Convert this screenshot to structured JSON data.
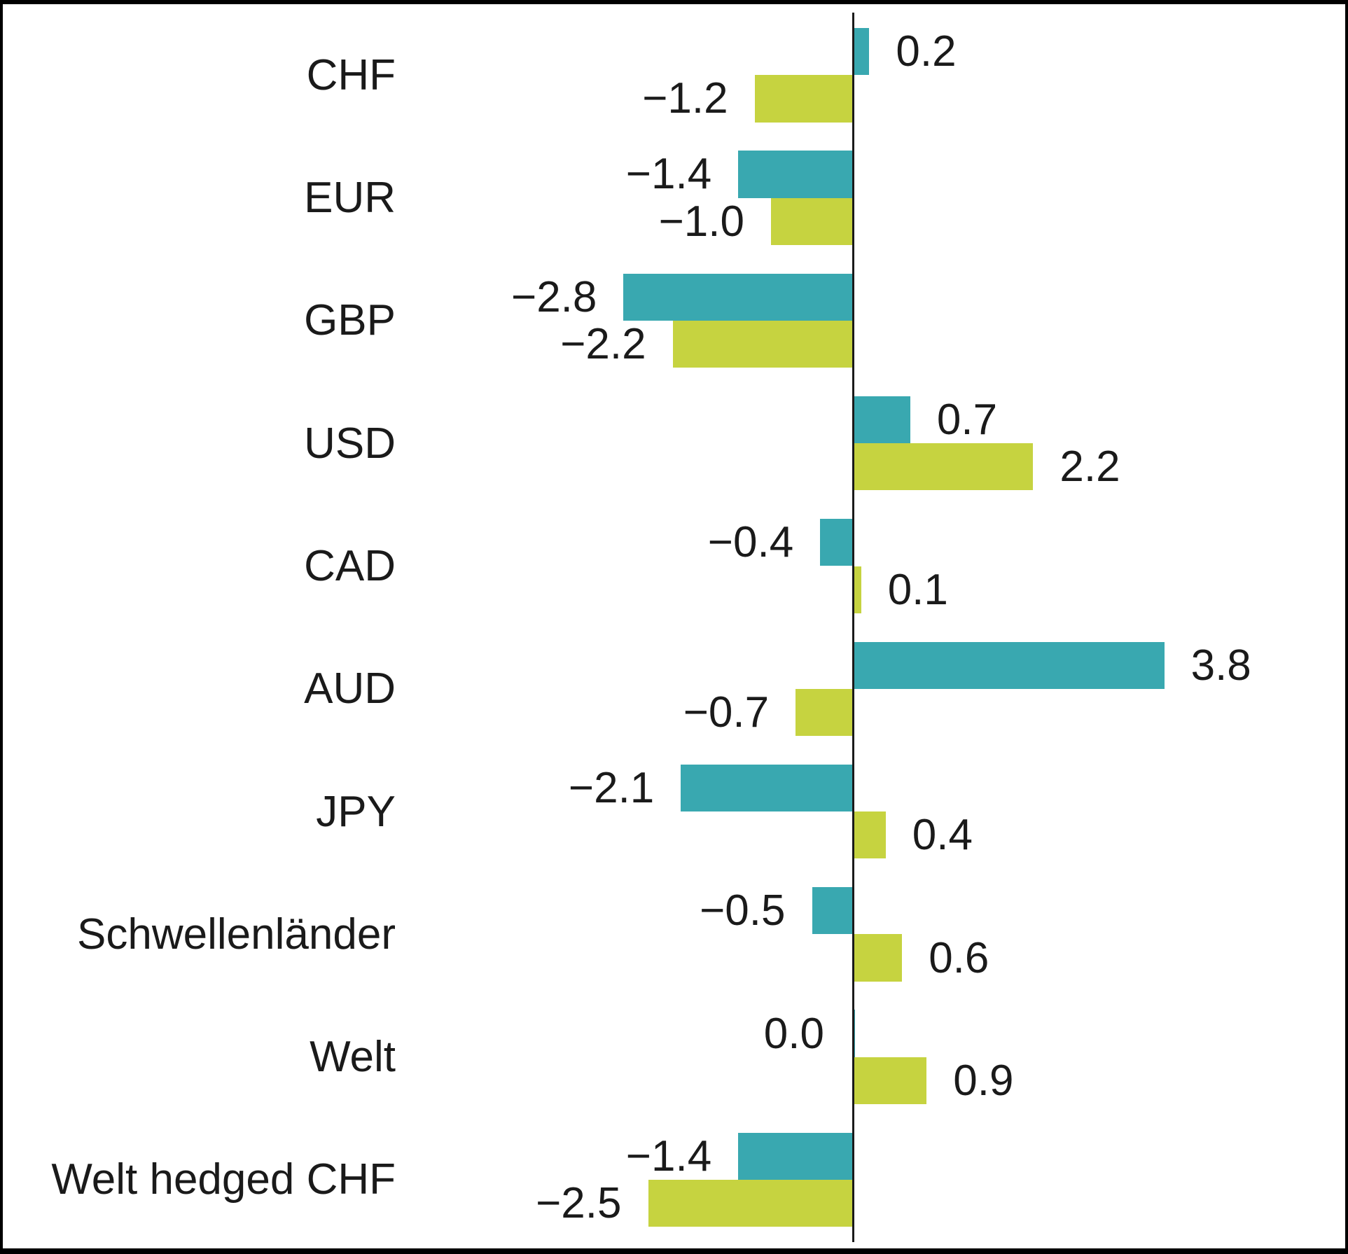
{
  "chart_data": {
    "type": "bar",
    "orientation": "horizontal",
    "title": "",
    "grid": false,
    "legend": false,
    "zero_axis_line": true,
    "categories": [
      "CHF",
      "EUR",
      "GBP",
      "USD",
      "CAD",
      "AUD",
      "JPY",
      "Schwellenländer",
      "Welt",
      "Welt hedged CHF"
    ],
    "series": [
      {
        "name": "teal-series",
        "color": "#39A8B0",
        "values": [
          0.2,
          -1.4,
          -2.8,
          0.7,
          -0.4,
          3.8,
          -2.1,
          -0.5,
          0.0,
          -1.4
        ]
      },
      {
        "name": "green-series",
        "color": "#C6D340",
        "values": [
          -1.2,
          -1.0,
          -2.2,
          2.2,
          0.1,
          -0.7,
          0.4,
          0.6,
          0.9,
          -2.5
        ]
      }
    ],
    "value_labels": [
      [
        "0.2",
        "−1.4",
        "−2.8",
        "0.7",
        "−0.4",
        "3.8",
        "−2.1",
        "−0.5",
        "0.0",
        "−1.4"
      ],
      [
        "−1.2",
        "−1.0",
        "−2.2",
        "2.2",
        "0.1",
        "−0.7",
        "0.4",
        "0.6",
        "0.9",
        "−2.5"
      ]
    ]
  },
  "colors": {
    "background": "#ffffff",
    "frame_border": "#000000",
    "text": "#1a1a1a",
    "teal": "#39A8B0",
    "green": "#C6D340"
  }
}
